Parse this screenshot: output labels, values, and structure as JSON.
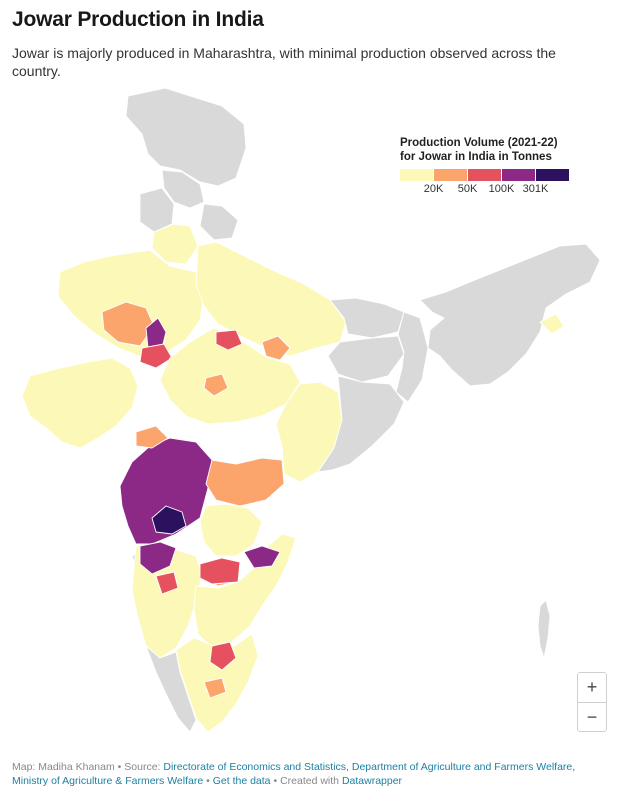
{
  "header": {
    "title": "Jowar Production in India",
    "subtitle": "Jowar is majorly produced in Maharashtra, with minimal production observed across the country."
  },
  "legend": {
    "title_line1": "Production Volume (2021-22)",
    "title_line2": "for Jowar in India in Tonnes",
    "colors": [
      "#fcf9b8",
      "#fba56d",
      "#e5515e",
      "#8c2885",
      "#2c115f"
    ],
    "ticks": [
      "20K",
      "50K",
      "100K",
      "301K"
    ]
  },
  "map": {
    "no_data_color": "#d9d9d9",
    "states": [
      {
        "name": "Jammu & Kashmir / Ladakh",
        "class": "no-data"
      },
      {
        "name": "Himachal Pradesh",
        "class": "no-data"
      },
      {
        "name": "Punjab",
        "class": "no-data"
      },
      {
        "name": "Uttarakhand",
        "class": "no-data"
      },
      {
        "name": "Haryana",
        "class": "0-20K"
      },
      {
        "name": "Rajasthan",
        "class": "0-20K"
      },
      {
        "name": "Rajasthan (east districts)",
        "class": "20K-50K"
      },
      {
        "name": "Rajasthan (Ajmer)",
        "class": "100K-301K"
      },
      {
        "name": "Rajasthan (south-east)",
        "class": "50K-100K"
      },
      {
        "name": "Uttar Pradesh",
        "class": "0-20K"
      },
      {
        "name": "Uttar Pradesh (Bundelkhand)",
        "class": "20K-50K"
      },
      {
        "name": "Madhya Pradesh",
        "class": "0-20K"
      },
      {
        "name": "Madhya Pradesh (north)",
        "class": "50K-100K"
      },
      {
        "name": "Madhya Pradesh (central)",
        "class": "20K-50K"
      },
      {
        "name": "Bihar",
        "class": "no-data"
      },
      {
        "name": "Jharkhand",
        "class": "no-data"
      },
      {
        "name": "West Bengal",
        "class": "no-data"
      },
      {
        "name": "Gujarat",
        "class": "0-20K"
      },
      {
        "name": "Chhattisgarh",
        "class": "0-20K"
      },
      {
        "name": "Odisha",
        "class": "no-data"
      },
      {
        "name": "Maharashtra",
        "class": "100K-301K"
      },
      {
        "name": "Solapur",
        "class": "301K+"
      },
      {
        "name": "Maharashtra (Nashik)",
        "class": "20K-50K"
      },
      {
        "name": "Maharashtra (Vidarbha)",
        "class": "20K-50K"
      },
      {
        "name": "Goa",
        "class": "no-data"
      },
      {
        "name": "Karnataka",
        "class": "0-20K"
      },
      {
        "name": "Karnataka (north)",
        "class": "100K-301K"
      },
      {
        "name": "Karnataka (Vijayapura)",
        "class": "50K-100K"
      },
      {
        "name": "Telangana",
        "class": "0-20K"
      },
      {
        "name": "Telangana (south)",
        "class": "20K-50K"
      },
      {
        "name": "Andhra Pradesh",
        "class": "0-20K"
      },
      {
        "name": "Andhra Pradesh (Kurnool)",
        "class": "50K-100K"
      },
      {
        "name": "Andhra Pradesh (Guntur)",
        "class": "100K-301K"
      },
      {
        "name": "Tamil Nadu",
        "class": "0-20K"
      },
      {
        "name": "Tamil Nadu (west)",
        "class": "50K-100K"
      },
      {
        "name": "Tamil Nadu (central)",
        "class": "20K-50K"
      },
      {
        "name": "Kerala",
        "class": "no-data"
      },
      {
        "name": "North-East states",
        "class": "no-data"
      },
      {
        "name": "Tripura",
        "class": "0-20K"
      },
      {
        "name": "Andaman & Nicobar",
        "class": "no-data"
      }
    ]
  },
  "zoom": {
    "in": "+",
    "out": "−"
  },
  "footer": {
    "map_by": "Map: Madiha Khanam",
    "source_label": "Source:",
    "source_link": "Directorate of Economics and Statistics, Department of Agriculture and Farmers Welfare, Ministry of Agriculture & Farmers Welfare",
    "get_data": "Get the data",
    "created_with": "Created with",
    "tool": "Datawrapper",
    "sep": "•"
  }
}
